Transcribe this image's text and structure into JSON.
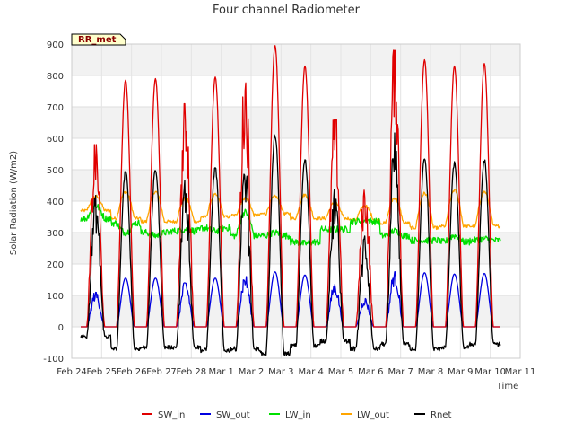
{
  "chart_data": {
    "type": "line",
    "title": "Four channel Radiometer",
    "xlabel": "Time",
    "ylabel": "Solar Radiation (W/m2)",
    "ylim": [
      -100,
      900
    ],
    "yticks": [
      -100,
      0,
      100,
      200,
      300,
      400,
      500,
      600,
      700,
      800,
      900
    ],
    "xlim": [
      0,
      15
    ],
    "xticks": [
      0,
      1,
      2,
      3,
      4,
      5,
      6,
      7,
      8,
      9,
      10,
      11,
      12,
      13,
      14,
      15
    ],
    "xtick_labels": [
      "Feb 24",
      "Feb 25",
      "Feb 26",
      "Feb 27",
      "Feb 28",
      "Mar 1",
      "Mar 2",
      "Mar 3",
      "Mar 4",
      "Mar 5",
      "Mar 6",
      "Mar 7",
      "Mar 8",
      "Mar 9",
      "Mar 10",
      "Mar 11"
    ],
    "site_label": "RR_met",
    "legend_position": "bottom",
    "days": [
      0.5,
      1.5,
      2.5,
      3.5,
      4.5,
      5.5,
      6.5,
      7.5,
      8.5,
      9.5,
      10.5,
      11.5,
      12.5,
      13.5
    ],
    "series": [
      {
        "name": "SW_in",
        "color": "#e00000",
        "night": 0,
        "peaks": [
          580,
          785,
          790,
          710,
          795,
          780,
          895,
          830,
          660,
          435,
          880,
          850,
          830,
          838
        ]
      },
      {
        "name": "SW_out",
        "color": "#0000e0",
        "night": 0,
        "peaks": [
          110,
          155,
          155,
          140,
          155,
          160,
          175,
          165,
          135,
          90,
          175,
          172,
          168,
          170
        ]
      },
      {
        "name": "LW_in",
        "color": "#00e000",
        "night": [
          345,
          330,
          300,
          305,
          315,
          290,
          290,
          270,
          310,
          335,
          290,
          275,
          270,
          275
        ],
        "day": [
          385,
          300,
          290,
          310,
          305,
          365,
          300,
          265,
          310,
          340,
          305,
          275,
          290,
          280
        ]
      },
      {
        "name": "LW_out",
        "color": "#ffa500",
        "night": [
          370,
          345,
          335,
          335,
          350,
          355,
          360,
          345,
          345,
          340,
          330,
          315,
          320,
          320
        ],
        "day": [
          415,
          430,
          430,
          410,
          420,
          410,
          415,
          420,
          395,
          385,
          410,
          425,
          435,
          430
        ]
      },
      {
        "name": "Rnet",
        "color": "#000000",
        "night": [
          -30,
          -70,
          -65,
          -65,
          -75,
          -70,
          -85,
          -60,
          -45,
          -70,
          -55,
          -70,
          -65,
          -55
        ],
        "peaks": [
          400,
          495,
          500,
          455,
          505,
          495,
          610,
          530,
          420,
          280,
          585,
          535,
          520,
          530
        ]
      }
    ]
  }
}
